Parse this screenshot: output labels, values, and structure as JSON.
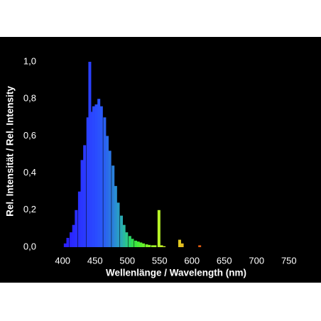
{
  "chart_data": {
    "type": "bar",
    "x_label": "Wellenlänge / Wavelength (nm)",
    "y_label": "Rel. Intensität / Rel. Intensity",
    "x": [
      404,
      408,
      413,
      417,
      421,
      426,
      430,
      434,
      439,
      442,
      444,
      448,
      452,
      456,
      460,
      465,
      469,
      473,
      478,
      482,
      486,
      491,
      495,
      499,
      504,
      508,
      513,
      517,
      521,
      525,
      530,
      534,
      539,
      543,
      549,
      553,
      557,
      581,
      585,
      612
    ],
    "values": [
      0.02,
      0.05,
      0.08,
      0.12,
      0.2,
      0.3,
      0.47,
      0.55,
      0.7,
      1.0,
      0.73,
      0.76,
      0.77,
      0.8,
      0.76,
      0.7,
      0.6,
      0.52,
      0.44,
      0.33,
      0.24,
      0.17,
      0.12,
      0.08,
      0.06,
      0.045,
      0.035,
      0.03,
      0.025,
      0.02,
      0.015,
      0.012,
      0.01,
      0.01,
      0.2,
      0.01,
      0.005,
      0.04,
      0.02,
      0.01
    ],
    "colors": [
      "#2a20ff",
      "#2a22ff",
      "#2a26ff",
      "#2a2aff",
      "#2a2eff",
      "#2a32ff",
      "#2a36ff",
      "#2a3aff",
      "#2a40ff",
      "#2a40ff",
      "#2a44ff",
      "#2a48ff",
      "#2a4cff",
      "#2a52fc",
      "#2a58f8",
      "#2a60f2",
      "#2a6aea",
      "#2a74e4",
      "#2a80dc",
      "#2a8ed2",
      "#2a9cc6",
      "#2aaab4",
      "#2ab8a0",
      "#2ac888",
      "#2ad46c",
      "#30dc50",
      "#3ae440",
      "#48ea36",
      "#58ee30",
      "#68f22a",
      "#78f426",
      "#88f626",
      "#98f626",
      "#a4f626",
      "#b8f428",
      "#c0f028",
      "#c8ea28",
      "#e0c820",
      "#e4bc20",
      "#e05a10"
    ],
    "xlim": [
      380,
      770
    ],
    "ylim": [
      0,
      1
    ],
    "xticks": [
      400,
      450,
      500,
      550,
      600,
      650,
      700,
      750
    ],
    "yticks": [
      {
        "value": 0,
        "label": "0,0"
      },
      {
        "value": 0.2,
        "label": "0,2"
      },
      {
        "value": 0.4,
        "label": "0,4"
      },
      {
        "value": 0.6,
        "label": "0,6"
      },
      {
        "value": 0.8,
        "label": "0,8"
      },
      {
        "value": 1.0,
        "label": "1,0"
      }
    ],
    "background": "#000000",
    "text_color": "#ffffff"
  }
}
